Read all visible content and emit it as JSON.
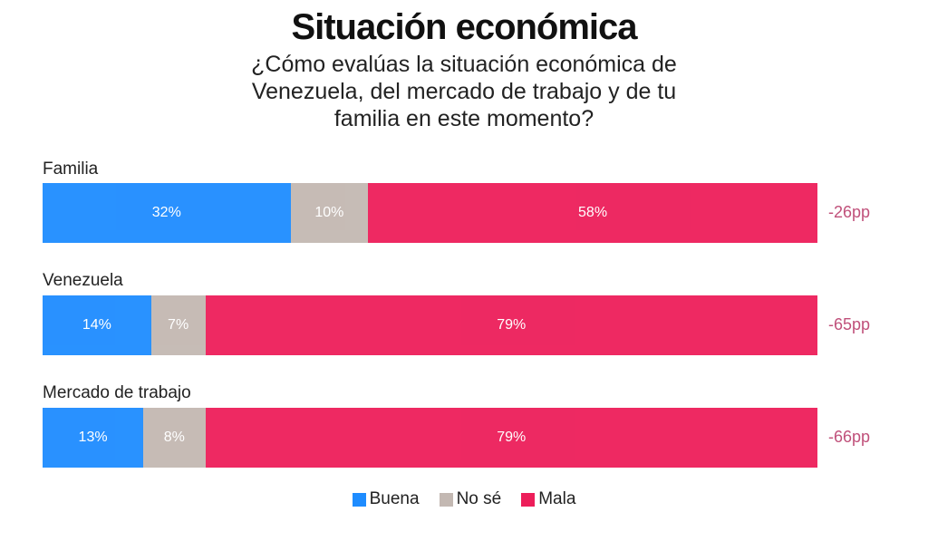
{
  "chart_data": {
    "type": "bar",
    "stacked": true,
    "orientation": "horizontal",
    "title": "Situación económica",
    "subtitle": "¿Cómo evalúas la situación económica de Venezuela, del mercado de trabajo y de tu familia en este momento?",
    "categories": [
      "Familia",
      "Venezuela",
      "Mercado de trabajo"
    ],
    "series": [
      {
        "name": "Buena",
        "color": "#1e8cff",
        "values": [
          32,
          14,
          13
        ],
        "labels": [
          "32%",
          "14%",
          "13%"
        ]
      },
      {
        "name": "No sé",
        "color": "#c3b8b2",
        "values": [
          10,
          7,
          8
        ],
        "labels": [
          "10%",
          "7%",
          "8%"
        ]
      },
      {
        "name": "Mala",
        "color": "#ed1e5a",
        "values": [
          58,
          79,
          79
        ],
        "labels": [
          "58%",
          "79%",
          "79%"
        ]
      }
    ],
    "net_labels": [
      "-26pp",
      "-65pp",
      "-66pp"
    ],
    "xlim": [
      0,
      100
    ],
    "grid": false,
    "legend_position": "bottom"
  }
}
